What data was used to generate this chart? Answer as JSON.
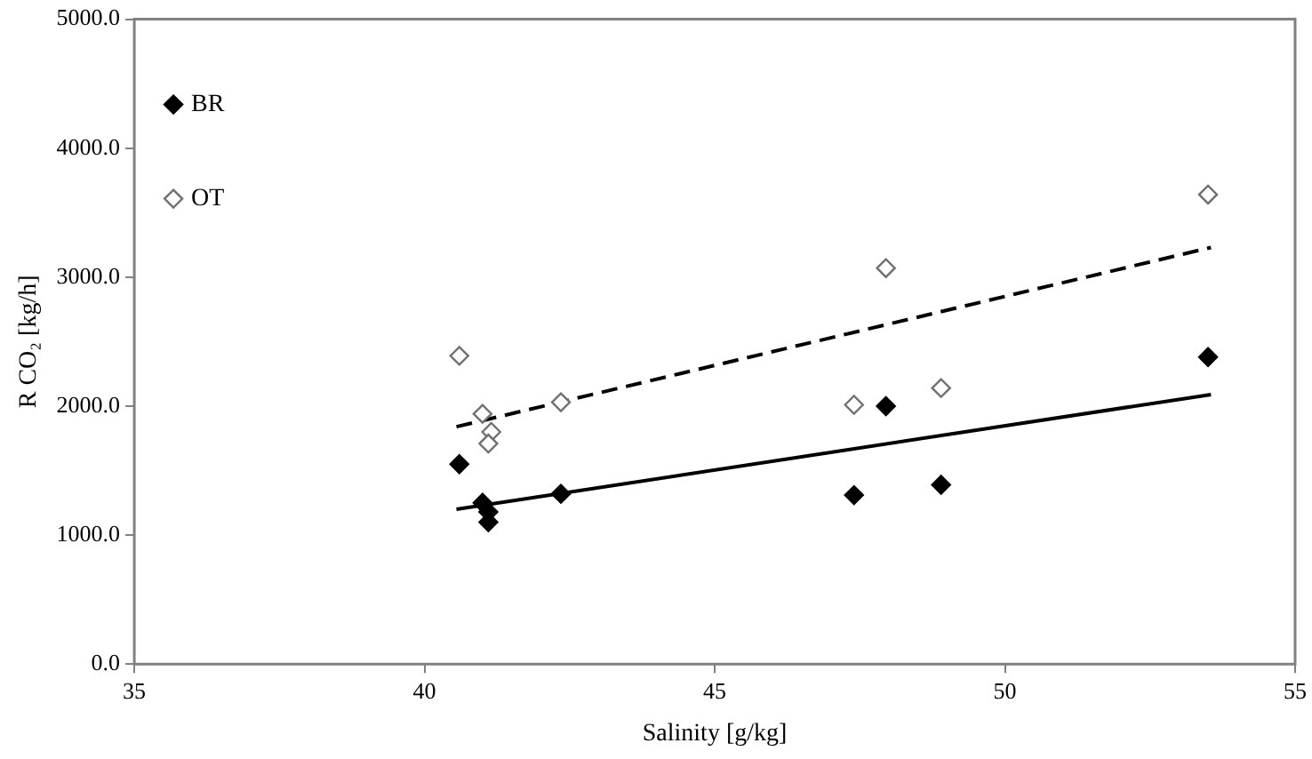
{
  "chart_data": {
    "type": "scatter",
    "xlabel": "Salinity [g/kg]",
    "ylabel": "R CO₂ [kg/h]",
    "xlim": [
      35,
      55
    ],
    "xticks": [
      35,
      40,
      45,
      50,
      55
    ],
    "ylim": [
      0,
      5000
    ],
    "yticks": [
      {
        "value": 0,
        "label": "0.0"
      },
      {
        "value": 1000,
        "label": "1000.0"
      },
      {
        "value": 2000,
        "label": "2000.0"
      },
      {
        "value": 3000,
        "label": "3000.0"
      },
      {
        "value": 4000,
        "label": "4000.0"
      },
      {
        "value": 5000,
        "label": "5000.0"
      }
    ],
    "grid": false,
    "legend": "top left",
    "series": [
      {
        "name": "BR",
        "color": "#000000",
        "marker": "diamond",
        "x": [
          40.6,
          41.0,
          41.1,
          41.1,
          42.35,
          47.4,
          47.95,
          48.9,
          53.5
        ],
        "values": [
          1550,
          1250,
          1180,
          1100,
          1320,
          1310,
          2000,
          1390,
          2380
        ]
      },
      {
        "name": "OT",
        "color": "#707070",
        "marker": "diamond",
        "x": [
          40.6,
          41.0,
          41.15,
          41.1,
          42.35,
          47.4,
          47.95,
          48.9,
          53.5
        ],
        "values": [
          2390,
          1940,
          1800,
          1710,
          2030,
          2010,
          3070,
          2140,
          3640
        ]
      },
      {
        "type": "line",
        "color": "#000000",
        "marker": "none",
        "line_style": "solid",
        "x": [
          40.55,
          53.55
        ],
        "values": [
          1200,
          2090
        ]
      },
      {
        "type": "line",
        "color": "#000000",
        "marker": "none",
        "line_style": "dashed",
        "x": [
          40.55,
          53.55
        ],
        "values": [
          1840,
          3230
        ]
      }
    ]
  }
}
